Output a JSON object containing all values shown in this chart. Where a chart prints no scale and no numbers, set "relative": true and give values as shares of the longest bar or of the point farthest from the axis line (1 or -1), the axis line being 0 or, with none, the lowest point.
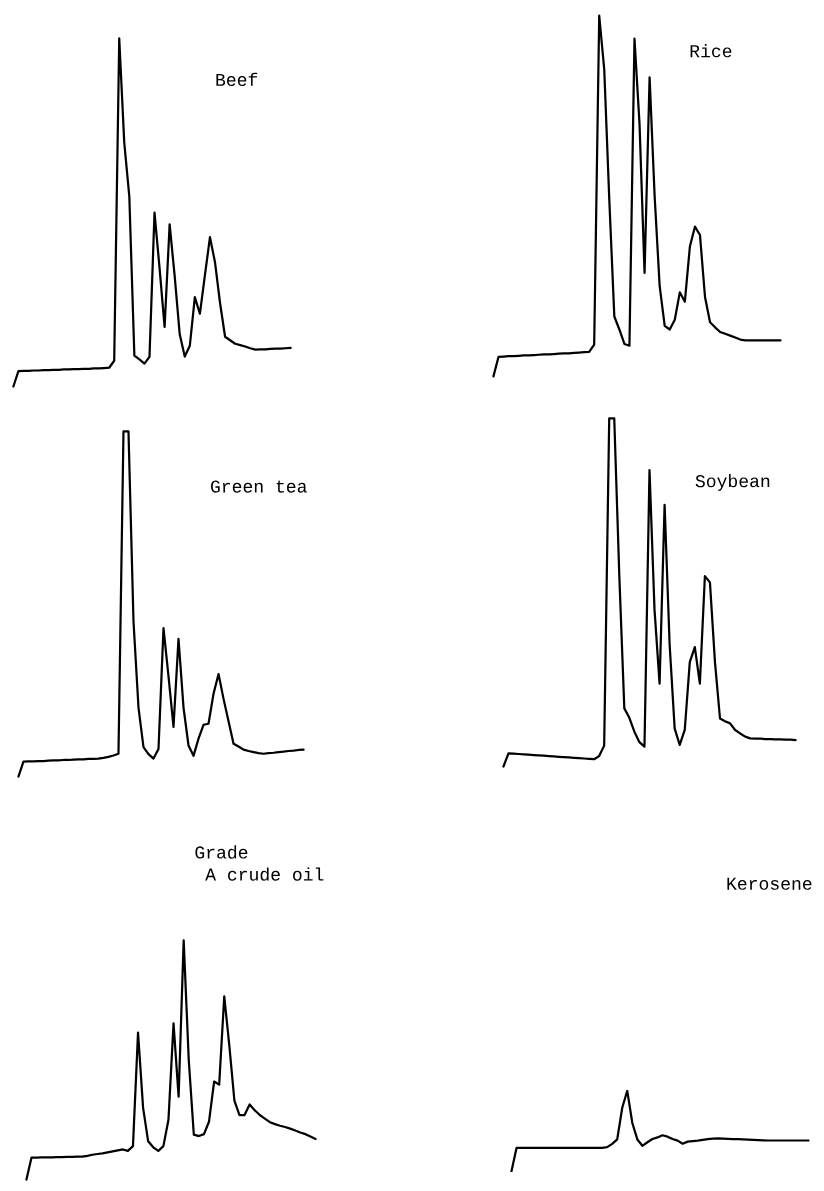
{
  "chart_data": [
    {
      "type": "line",
      "title": "Beef",
      "relative": true,
      "categories": [
        null,
        null,
        null,
        null,
        null,
        null,
        null,
        null,
        null,
        null,
        null,
        null,
        null,
        null,
        null,
        null,
        null,
        null,
        null,
        null,
        null,
        null,
        null,
        null,
        null,
        null,
        null,
        null,
        null,
        null,
        null,
        null,
        null,
        null,
        null,
        null,
        null,
        null,
        null,
        null,
        null,
        null,
        null,
        null,
        null,
        null,
        null,
        null,
        null,
        null,
        null,
        null,
        null,
        null,
        null,
        null
      ],
      "series": [
        {
          "color": "#000000",
          "values": [
            0,
            0.044,
            0.045,
            0.045,
            0.046,
            0.046,
            0.047,
            0.047,
            0.048,
            0.048,
            0.049,
            0.049,
            0.05,
            0.05,
            0.051,
            0.051,
            0.052,
            0.052,
            0.053,
            0.054,
            0.074,
            1,
            0.7,
            0.546,
            0.089,
            0.078,
            0.066,
            0.085,
            0.5,
            0.34,
            0.171,
            0.466,
            0.317,
            0.15,
            0.086,
            0.117,
            0.257,
            0.209,
            0.32,
            0.429,
            0.357,
            0.24,
            0.143,
            0.133,
            0.123,
            0.119,
            0.115,
            0.11,
            0.106,
            0.107,
            0.107,
            0.108,
            0.109,
            0.109,
            0.11,
            0.111
          ]
        }
      ]
    },
    {
      "type": "line",
      "title": "Rice",
      "relative": true,
      "categories": [
        null,
        null,
        null,
        null,
        null,
        null,
        null,
        null,
        null,
        null,
        null,
        null,
        null,
        null,
        null,
        null,
        null,
        null,
        null,
        null,
        null,
        null,
        null,
        null,
        null,
        null,
        null,
        null,
        null,
        null,
        null,
        null,
        null,
        null,
        null,
        null,
        null,
        null,
        null,
        null,
        null,
        null,
        null,
        null,
        null,
        null,
        null,
        null,
        null,
        null,
        null,
        null,
        null,
        null,
        null,
        null,
        null,
        null
      ],
      "series": [
        {
          "color": "#000000",
          "values": [
            0,
            0.054,
            0.055,
            0.056,
            0.056,
            0.057,
            0.058,
            0.058,
            0.059,
            0.06,
            0.061,
            0.061,
            0.062,
            0.063,
            0.064,
            0.064,
            0.065,
            0.066,
            0.067,
            0.068,
            0.088,
            1,
            0.85,
            0.49,
            0.166,
            0.13,
            0.09,
            0.085,
            0.936,
            0.7,
            0.287,
            0.829,
            0.5,
            0.25,
            0.14,
            0.13,
            0.157,
            0.233,
            0.207,
            0.36,
            0.415,
            0.392,
            0.22,
            0.15,
            0.136,
            0.123,
            0.118,
            0.113,
            0.108,
            0.102,
            0.1,
            0.1,
            0.1,
            0.1,
            0.1,
            0.1,
            0.1,
            0.1
          ]
        }
      ]
    },
    {
      "type": "line",
      "title": "Green tea",
      "relative": true,
      "categories": [
        null,
        null,
        null,
        null,
        null,
        null,
        null,
        null,
        null,
        null,
        null,
        null,
        null,
        null,
        null,
        null,
        null,
        null,
        null,
        null,
        null,
        null,
        null,
        null,
        null,
        null,
        null,
        null,
        null,
        null,
        null,
        null,
        null,
        null,
        null,
        null,
        null,
        null,
        null,
        null,
        null,
        null,
        null,
        null,
        null,
        null,
        null,
        null,
        null,
        null,
        null,
        null,
        null,
        null,
        null,
        null,
        null,
        null
      ],
      "series": [
        {
          "color": "#000000",
          "values": [
            0,
            0.043,
            0.044,
            0.044,
            0.045,
            0.045,
            0.046,
            0.047,
            0.047,
            0.048,
            0.048,
            0.049,
            0.05,
            0.05,
            0.051,
            0.051,
            0.052,
            0.054,
            0.057,
            0.061,
            0.066,
            1,
            1,
            0.45,
            0.2,
            0.085,
            0.065,
            0.052,
            0.08,
            0.43,
            0.29,
            0.144,
            0.399,
            0.2,
            0.09,
            0.06,
            0.11,
            0.15,
            0.153,
            0.24,
            0.297,
            0.225,
            0.16,
            0.095,
            0.087,
            0.078,
            0.074,
            0.071,
            0.068,
            0.066,
            0.068,
            0.069,
            0.071,
            0.072,
            0.074,
            0.075,
            0.077,
            0.078
          ]
        }
      ]
    },
    {
      "type": "line",
      "title": "Soybean",
      "relative": true,
      "categories": [
        null,
        null,
        null,
        null,
        null,
        null,
        null,
        null,
        null,
        null,
        null,
        null,
        null,
        null,
        null,
        null,
        null,
        null,
        null,
        null,
        null,
        null,
        null,
        null,
        null,
        null,
        null,
        null,
        null,
        null,
        null,
        null,
        null,
        null,
        null,
        null,
        null,
        null,
        null,
        null,
        null,
        null,
        null,
        null,
        null,
        null,
        null,
        null,
        null,
        null,
        null,
        null,
        null,
        null,
        null,
        null,
        null,
        null,
        null
      ],
      "series": [
        {
          "color": "#000000",
          "values": [
            0,
            0.038,
            0.037,
            0.036,
            0.035,
            0.034,
            0.033,
            0.032,
            0.031,
            0.03,
            0.029,
            0.028,
            0.027,
            0.026,
            0.025,
            0.024,
            0.023,
            0.022,
            0.021,
            0.03,
            0.06,
            1,
            1,
            0.55,
            0.167,
            0.14,
            0.1,
            0.07,
            0.057,
            0.852,
            0.45,
            0.238,
            0.752,
            0.35,
            0.109,
            0.062,
            0.105,
            0.3,
            0.343,
            0.238,
            0.547,
            0.529,
            0.3,
            0.138,
            0.13,
            0.124,
            0.105,
            0.095,
            0.086,
            0.081,
            0.08,
            0.08,
            0.079,
            0.079,
            0.078,
            0.078,
            0.077,
            0.077,
            0.076
          ]
        }
      ]
    },
    {
      "type": "line",
      "title": "Grade\n A crude oil",
      "relative": true,
      "categories": [
        null,
        null,
        null,
        null,
        null,
        null,
        null,
        null,
        null,
        null,
        null,
        null,
        null,
        null,
        null,
        null,
        null,
        null,
        null,
        null,
        null,
        null,
        null,
        null,
        null,
        null,
        null,
        null,
        null,
        null,
        null,
        null,
        null,
        null,
        null,
        null,
        null,
        null,
        null,
        null,
        null,
        null,
        null,
        null,
        null,
        null,
        null,
        null,
        null,
        null,
        null,
        null,
        null,
        null,
        null,
        null,
        null,
        null
      ],
      "series": [
        {
          "color": "#000000",
          "values": [
            0,
            0.092,
            0.092,
            0.093,
            0.093,
            0.093,
            0.094,
            0.094,
            0.095,
            0.095,
            0.096,
            0.096,
            0.099,
            0.104,
            0.107,
            0.11,
            0.114,
            0.118,
            0.122,
            0.126,
            0.12,
            0.14,
            0.615,
            0.3,
            0.16,
            0.135,
            0.12,
            0.14,
            0.25,
            0.653,
            0.347,
            1,
            0.5,
            0.188,
            0.182,
            0.19,
            0.243,
            0.41,
            0.397,
            0.766,
            0.56,
            0.33,
            0.27,
            0.27,
            0.314,
            0.29,
            0.27,
            0.255,
            0.24,
            0.232,
            0.225,
            0.22,
            0.213,
            0.205,
            0.197,
            0.19,
            0.18,
            0.17
          ]
        }
      ]
    },
    {
      "type": "line",
      "title": "Kerosene",
      "relative": true,
      "categories": [
        null,
        null,
        null,
        null,
        null,
        null,
        null,
        null,
        null,
        null,
        null,
        null,
        null,
        null,
        null,
        null,
        null,
        null,
        null,
        null,
        null,
        null,
        null,
        null,
        null,
        null,
        null,
        null,
        null,
        null,
        null,
        null,
        null,
        null,
        null,
        null,
        null,
        null,
        null,
        null,
        null,
        null,
        null,
        null,
        null,
        null,
        null,
        null,
        null,
        null,
        null,
        null,
        null,
        null,
        null,
        null,
        null,
        null,
        null,
        null
      ],
      "series": [
        {
          "color": "#000000",
          "values": [
            0,
            0.289,
            0.289,
            0.289,
            0.289,
            0.289,
            0.289,
            0.289,
            0.289,
            0.289,
            0.289,
            0.289,
            0.289,
            0.289,
            0.289,
            0.289,
            0.289,
            0.289,
            0.289,
            0.3,
            0.34,
            0.395,
            0.789,
            1,
            0.6,
            0.395,
            0.316,
            0.36,
            0.4,
            0.42,
            0.447,
            0.43,
            0.4,
            0.38,
            0.342,
            0.368,
            0.375,
            0.38,
            0.39,
            0.4,
            0.405,
            0.408,
            0.405,
            0.403,
            0.4,
            0.398,
            0.395,
            0.392,
            0.389,
            0.386,
            0.384,
            0.382,
            0.382,
            0.382,
            0.382,
            0.382,
            0.382,
            0.382,
            0.382,
            0.382
          ]
        }
      ]
    }
  ]
}
